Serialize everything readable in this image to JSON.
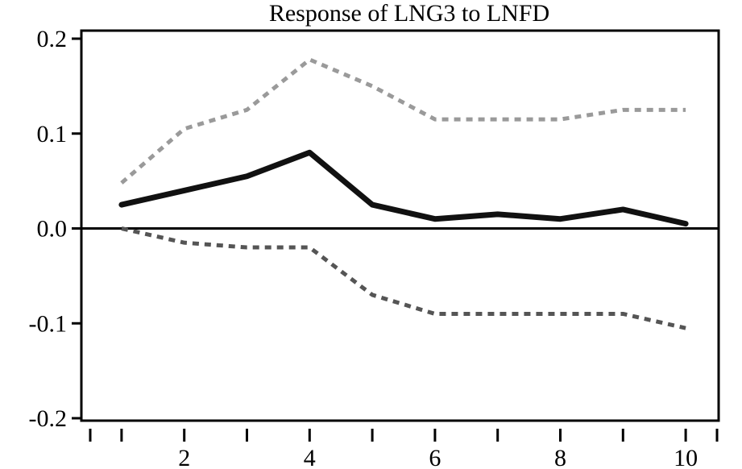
{
  "chart_data": {
    "type": "line",
    "title": "Response of LNG3 to LNFD",
    "xlabel": "",
    "ylabel": "",
    "xlim": [
      0.5,
      10.5
    ],
    "ylim": [
      -0.2,
      0.2
    ],
    "x_ticks": [
      1,
      2,
      3,
      4,
      5,
      6,
      7,
      8,
      9,
      10
    ],
    "x_tick_labels": [
      "2",
      "4",
      "6",
      "8",
      "10"
    ],
    "x_tick_label_values": [
      2,
      4,
      6,
      8,
      10
    ],
    "y_ticks": [
      0.2,
      0.1,
      0.0,
      -0.1,
      -0.2
    ],
    "y_tick_labels": [
      "0.2",
      "0.1",
      "0.0",
      "-0.1",
      "-0.2"
    ],
    "zero_line": true,
    "grid": false,
    "series": [
      {
        "style": "solid",
        "color": "#111111",
        "x": [
          1,
          2,
          3,
          4,
          5,
          6,
          7,
          8,
          9,
          10
        ],
        "values": [
          0.025,
          0.04,
          0.055,
          0.08,
          0.025,
          0.01,
          0.015,
          0.01,
          0.02,
          0.005
        ]
      },
      {
        "style": "dotted",
        "color": "#9a9a9a",
        "x": [
          1,
          2,
          3,
          4,
          5,
          6,
          7,
          8,
          9,
          10
        ],
        "values": [
          0.048,
          0.105,
          0.125,
          0.178,
          0.15,
          0.115,
          0.115,
          0.115,
          0.125,
          0.125
        ]
      },
      {
        "style": "dotted",
        "color": "#555555",
        "x": [
          1,
          2,
          3,
          4,
          5,
          6,
          7,
          8,
          9,
          10
        ],
        "values": [
          0.0,
          -0.015,
          -0.02,
          -0.02,
          -0.07,
          -0.09,
          -0.09,
          -0.09,
          -0.09,
          -0.105
        ]
      }
    ]
  }
}
